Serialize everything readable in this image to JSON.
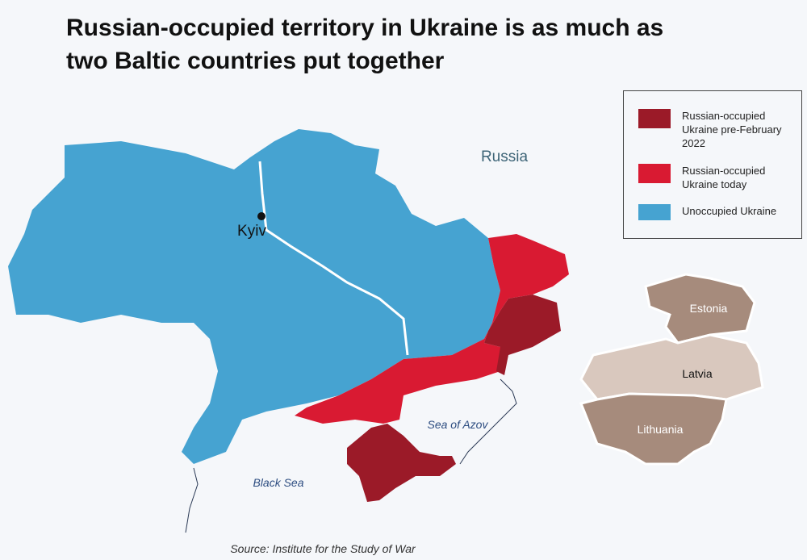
{
  "title": "Russian-occupied territory in Ukraine is as much as two Baltic countries put together",
  "legend": [
    {
      "label": "Russian-occupied Ukraine pre-February 2022",
      "color": "#9b1a28"
    },
    {
      "label": "Russian-occupied Ukraine today",
      "color": "#d91a32"
    },
    {
      "label": "Unoccupied Ukraine",
      "color": "#46a3d1"
    }
  ],
  "places": {
    "russia": "Russia",
    "kyiv": "Kyiv",
    "sea_of_azov": "Sea of Azov",
    "black_sea": "Black Sea"
  },
  "baltics": [
    {
      "label": "Estonia",
      "color": "#a68b7c"
    },
    {
      "label": "Latvia",
      "color": "#d9c8be"
    },
    {
      "label": "Lithuania",
      "color": "#a68b7c"
    }
  ],
  "source": "Source: Institute for the Study of War"
}
